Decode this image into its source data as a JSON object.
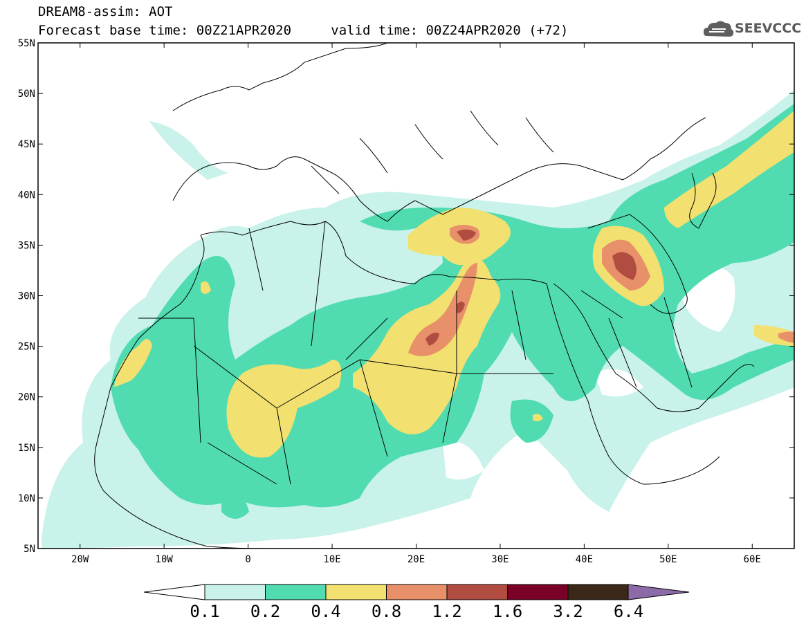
{
  "header": {
    "title": "DREAM8-assim: AOT",
    "base_time": "Forecast base time: 00Z21APR2020",
    "valid_time": "valid time: 00Z24APR2020 (+72)"
  },
  "logo": {
    "text": "SEEVCCC",
    "icon": "cloud-icon"
  },
  "map": {
    "latitude_labels": [
      "55N",
      "50N",
      "45N",
      "40N",
      "35N",
      "30N",
      "25N",
      "20N",
      "15N",
      "10N",
      "5N"
    ],
    "longitude_labels": [
      "20W",
      "10W",
      "0",
      "10E",
      "20E",
      "30E",
      "40E",
      "50E",
      "60E"
    ],
    "extent": {
      "lon": [
        -25,
        65
      ],
      "lat": [
        5,
        55
      ]
    },
    "field": "AOT"
  },
  "colorbar": {
    "labels": [
      "0.1",
      "0.2",
      "0.4",
      "0.8",
      "1.2",
      "1.6",
      "3.2",
      "6.4"
    ],
    "colors": [
      "#c8f2ea",
      "#50dcb0",
      "#f2e070",
      "#e8906a",
      "#b04c40",
      "#7a0028",
      "#3c2818",
      "#8c6aa8"
    ],
    "under_color": "#ffffff",
    "over_color": "#8c6aa8"
  }
}
